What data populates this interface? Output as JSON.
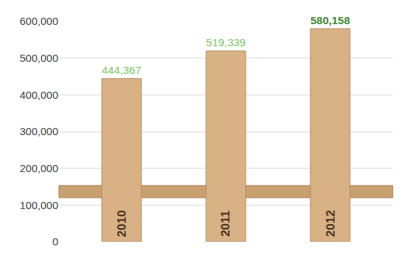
{
  "chart_data": {
    "type": "bar",
    "categories": [
      "2010",
      "2011",
      "2012"
    ],
    "values": [
      444367,
      519339,
      580158
    ],
    "value_labels": [
      "444,367",
      "519,339",
      "580,158"
    ],
    "data_labels": true,
    "color": "#d8b185",
    "ylim": [
      0,
      600000
    ],
    "yticks": [
      0,
      {
        "value": 100000,
        "label": "100,000"
      },
      {
        "value": 200000,
        "label": "200,000"
      },
      {
        "value": 300000,
        "label": "300,000"
      },
      {
        "value": 400000,
        "label": "400,000"
      },
      {
        "value": 500000,
        "label": "500,000"
      },
      {
        "value": 600000,
        "label": "600,000"
      }
    ],
    "grid": true
  }
}
